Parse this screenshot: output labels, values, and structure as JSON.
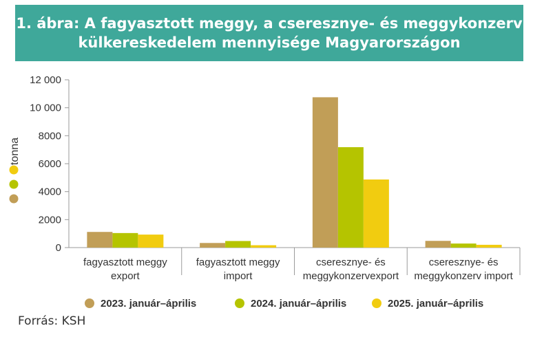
{
  "chart_data": {
    "type": "bar",
    "title_lines": [
      "1. ábra: A fagyasztott meggy, a cseresznye- és meggykonzerv",
      "külkereskedelem mennyisége Magyarországon"
    ],
    "ylabel": "tonna",
    "ylim": [
      0,
      12000
    ],
    "yticks": [
      0,
      2000,
      4000,
      6000,
      8000,
      10000,
      12000
    ],
    "ytick_labels": [
      "0",
      "2000",
      "4000",
      "6000",
      "8000",
      "10 000",
      "12 000"
    ],
    "categories": [
      [
        "fagyasztott meggy",
        "export"
      ],
      [
        "fagyasztott meggy",
        "import"
      ],
      [
        "cseresznye- és",
        "meggykonzervexport"
      ],
      [
        "cseresznye- és",
        "meggykonzerv import"
      ]
    ],
    "series": [
      {
        "name": "2023. január–április",
        "color": "#c19e57",
        "values": [
          1120,
          330,
          10750,
          480
        ]
      },
      {
        "name": "2024. január–április",
        "color": "#b5c400",
        "values": [
          1040,
          470,
          7180,
          290
        ]
      },
      {
        "name": "2025. január–április",
        "color": "#f1cc10",
        "values": [
          930,
          170,
          4870,
          200
        ]
      }
    ],
    "legend_position": "bottom",
    "grid": false,
    "source": "Forrás: KSH"
  }
}
